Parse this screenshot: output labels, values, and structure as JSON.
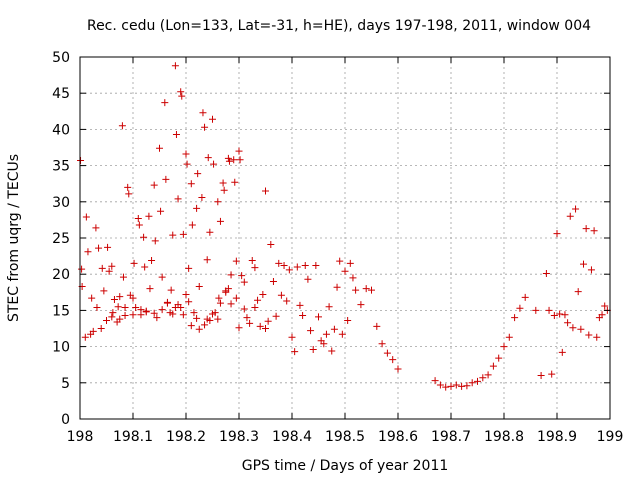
{
  "chart_data": {
    "type": "scatter",
    "title": "Rec. cedu (Lon=133, Lat=-31, h=HE), days 197-198, 2011, window 004",
    "xlabel": "GPS time / Days of year 2011",
    "ylabel": "STEC from uqrg / TECUs",
    "xlim": [
      198,
      199
    ],
    "ylim": [
      0,
      50
    ],
    "xticks": [
      198,
      198.1,
      198.2,
      198.3,
      198.4,
      198.5,
      198.6,
      198.7,
      198.8,
      198.9,
      199
    ],
    "xtick_labels": [
      "198",
      "198.1",
      "198.2",
      "198.3",
      "198.4",
      "198.5",
      "198.6",
      "198.7",
      "198.8",
      "198.9",
      "199"
    ],
    "yticks": [
      0,
      5,
      10,
      15,
      20,
      25,
      30,
      35,
      40,
      45,
      50
    ],
    "ytick_labels": [
      "0",
      "5",
      "10",
      "15",
      "20",
      "25",
      "30",
      "35",
      "40",
      "45",
      "50"
    ],
    "grid": true,
    "marker_color": "#cc0000",
    "series": [
      {
        "name": "STEC",
        "x": [
          198.001,
          198.003,
          198.004,
          198.01,
          198.012,
          198.015,
          198.02,
          198.022,
          198.025,
          198.03,
          198.032,
          198.035,
          198.04,
          198.042,
          198.045,
          198.05,
          198.052,
          198.055,
          198.06,
          198.062,
          198.065,
          198.07,
          198.072,
          198.075,
          198.08,
          198.082,
          198.085,
          198.09,
          198.092,
          198.095,
          198.1,
          198.102,
          198.105,
          198.11,
          198.112,
          198.115,
          198.12,
          198.122,
          198.125,
          198.13,
          198.132,
          198.135,
          198.14,
          198.142,
          198.145,
          198.15,
          198.152,
          198.155,
          198.16,
          198.162,
          198.165,
          198.17,
          198.172,
          198.175,
          198.18,
          198.182,
          198.185,
          198.19,
          198.192,
          198.195,
          198.2,
          198.202,
          198.205,
          198.21,
          198.212,
          198.215,
          198.22,
          198.222,
          198.225,
          198.23,
          198.232,
          198.235,
          198.24,
          198.242,
          198.245,
          198.25,
          198.252,
          198.255,
          198.26,
          198.262,
          198.265,
          198.27,
          198.272,
          198.275,
          198.28,
          198.282,
          198.285,
          198.29,
          198.292,
          198.295,
          198.3,
          198.302,
          198.305,
          198.31,
          198.315,
          198.32,
          198.325,
          198.33,
          198.335,
          198.34,
          198.345,
          198.35,
          198.355,
          198.36,
          198.365,
          198.37,
          198.375,
          198.38,
          198.385,
          198.39,
          198.395,
          198.4,
          198.405,
          198.41,
          198.415,
          198.42,
          198.425,
          198.43,
          198.435,
          198.44,
          198.445,
          198.45,
          198.455,
          198.46,
          198.465,
          198.47,
          198.475,
          198.48,
          198.485,
          198.49,
          198.495,
          198.5,
          198.505,
          198.51,
          198.515,
          198.52,
          198.53,
          198.54,
          198.55,
          198.56,
          198.57,
          198.58,
          198.59,
          198.6,
          198.67,
          198.68,
          198.69,
          198.7,
          198.71,
          198.72,
          198.73,
          198.74,
          198.75,
          198.76,
          198.77,
          198.78,
          198.79,
          198.8,
          198.81,
          198.82,
          198.83,
          198.84,
          198.86,
          198.87,
          198.88,
          198.885,
          198.89,
          198.895,
          198.9,
          198.905,
          198.91,
          198.915,
          198.92,
          198.925,
          198.93,
          198.935,
          198.94,
          198.945,
          198.95,
          198.955,
          198.96,
          198.965,
          198.97,
          198.975,
          198.98,
          198.985,
          198.99,
          198.995,
          198.06,
          198.075,
          198.085,
          198.1,
          198.115,
          198.125,
          198.14,
          198.155,
          198.165,
          198.18,
          198.195,
          198.205,
          198.22,
          198.235,
          198.245,
          198.26,
          198.275,
          198.285,
          198.3,
          198.175,
          198.185,
          198.19,
          198.2,
          198.21,
          198.225,
          198.24,
          198.25,
          198.265,
          198.28,
          198.295,
          198.31,
          198.33,
          198.35
        ],
        "y": [
          35.7,
          20.7,
          18.3,
          11.3,
          27.9,
          23.1,
          11.7,
          16.7,
          12.1,
          26.4,
          15.4,
          23.6,
          12.5,
          20.8,
          17.7,
          13.6,
          23.7,
          20.4,
          21.1,
          14.7,
          16.5,
          13.4,
          15.5,
          16.9,
          40.5,
          19.6,
          14.3,
          32.0,
          31.1,
          17.1,
          16.7,
          21.5,
          15.4,
          27.7,
          26.8,
          15.1,
          25.1,
          21.0,
          14.8,
          28.0,
          18.0,
          21.9,
          32.3,
          24.6,
          14.0,
          37.4,
          28.7,
          19.6,
          43.7,
          33.1,
          16.1,
          14.7,
          17.8,
          25.4,
          48.8,
          39.3,
          30.4,
          45.2,
          44.6,
          25.5,
          36.6,
          35.2,
          20.8,
          32.5,
          26.8,
          14.7,
          29.1,
          33.9,
          18.3,
          30.6,
          42.3,
          40.3,
          22.0,
          36.1,
          25.8,
          41.4,
          35.2,
          14.7,
          30.0,
          16.7,
          27.3,
          32.6,
          31.6,
          17.7,
          36.0,
          35.6,
          15.9,
          35.8,
          32.7,
          16.7,
          37.0,
          35.8,
          19.8,
          15.2,
          14.0,
          13.2,
          21.9,
          15.4,
          16.4,
          12.8,
          17.2,
          31.5,
          13.5,
          24.1,
          19.0,
          14.2,
          21.5,
          17.1,
          21.2,
          16.3,
          20.6,
          11.3,
          9.3,
          21.0,
          15.7,
          14.3,
          21.2,
          19.3,
          12.2,
          9.6,
          21.2,
          14.1,
          10.8,
          10.4,
          11.7,
          15.5,
          9.4,
          12.4,
          18.2,
          21.8,
          11.7,
          20.4,
          13.6,
          21.5,
          19.5,
          17.8,
          15.8,
          18.0,
          17.8,
          12.8,
          10.4,
          9.1,
          8.2,
          6.9,
          5.3,
          4.7,
          4.4,
          4.5,
          4.7,
          4.5,
          4.6,
          5.0,
          5.2,
          5.7,
          6.1,
          7.3,
          8.4,
          10.0,
          11.3,
          14.0,
          15.3,
          16.8,
          15.0,
          6.0,
          20.1,
          15.0,
          6.2,
          14.3,
          25.6,
          14.5,
          9.2,
          14.4,
          13.3,
          28.0,
          12.6,
          29.0,
          17.6,
          12.4,
          21.4,
          26.3,
          11.6,
          20.6,
          26.0,
          11.3,
          14.0,
          14.4,
          15.6,
          15.0,
          14.1,
          13.8,
          15.4,
          14.4,
          14.4,
          14.9,
          14.6,
          15.1,
          16.0,
          15.4,
          14.4,
          16.2,
          13.9,
          13.0,
          13.6,
          13.8,
          17.5,
          19.9,
          12.6,
          14.5,
          15.8,
          15.4,
          17.2,
          12.9,
          12.4,
          13.8,
          14.5,
          16.0,
          18.0,
          21.8,
          18.9,
          20.9,
          12.5
        ]
      }
    ]
  }
}
